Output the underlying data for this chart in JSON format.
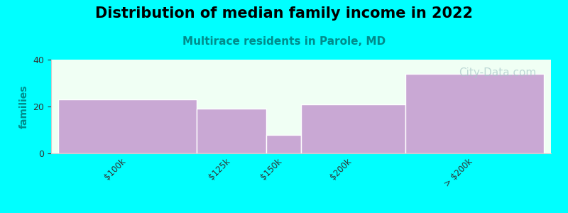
{
  "title": "Distribution of median family income in 2022",
  "subtitle": "Multirace residents in Parole, MD",
  "title_fontsize": 15,
  "subtitle_fontsize": 11,
  "subtitle_color": "#008B8B",
  "ylabel": "families",
  "ylabel_color": "#008B8B",
  "background_color": "#00FFFF",
  "plot_bg_color": "#F0FFF4",
  "bar_color": "#C9A8D4",
  "bar_edge_color": "#FFFFFF",
  "ylim": [
    0,
    40
  ],
  "yticks": [
    0,
    20,
    40
  ],
  "categories": [
    "$100k",
    "$125k",
    "$150k",
    "$200k",
    "> $200k"
  ],
  "values": [
    23,
    19,
    8,
    21,
    34
  ],
  "edges": [
    0,
    2,
    3,
    3.5,
    5,
    7
  ],
  "watermark": "City-Data.com",
  "watermark_color": "#A8C8C8",
  "watermark_fontsize": 11
}
